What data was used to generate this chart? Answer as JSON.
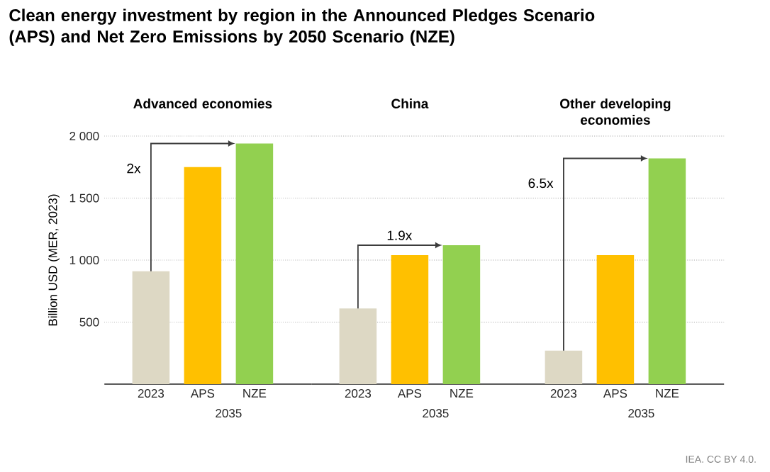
{
  "chart_data": [
    {
      "type": "bar",
      "title": "Clean energy investment by region in the Announced Pledges Scenario (APS) and Net Zero Emissions by 2050 Scenario (NZE)",
      "subtitle": "Advanced economies",
      "ylabel": "Billion USD (MER, 2023)",
      "xlabel": "2035",
      "categories": [
        "2023",
        "APS",
        "NZE"
      ],
      "values": [
        910,
        1750,
        1940
      ],
      "colors": [
        "#ddd8c4",
        "#ffc000",
        "#92d050"
      ],
      "ylim": [
        0,
        2000
      ],
      "yticks": [
        500,
        {
          "value": 1000,
          "label": "1 000"
        },
        {
          "value": 1500,
          "label": "1 500"
        },
        {
          "value": 2000,
          "label": "2 000"
        }
      ],
      "grid": "y",
      "annotations": [
        "2x"
      ]
    },
    {
      "type": "bar",
      "subtitle": "China",
      "xlabel": "2035",
      "categories": [
        "2023",
        "APS",
        "NZE"
      ],
      "values": [
        610,
        1040,
        1120
      ],
      "colors": [
        "#ddd8c4",
        "#ffc000",
        "#92d050"
      ],
      "ylim": [
        0,
        2000
      ],
      "yticks": [
        {
          "value": 500,
          "label": null
        },
        {
          "value": 1000,
          "label": null
        },
        {
          "value": 1500,
          "label": null
        },
        {
          "value": 2000,
          "label": null
        }
      ],
      "grid": "y",
      "tick_labels": "x",
      "annotations": [
        "1.9x"
      ]
    },
    {
      "type": "bar",
      "subtitle": "Other developing economies",
      "xlabel": "2035",
      "categories": [
        "2023",
        "APS",
        "NZE"
      ],
      "values": [
        270,
        1040,
        1820
      ],
      "colors": [
        "#ddd8c4",
        "#ffc000",
        "#92d050"
      ],
      "ylim": [
        0,
        2000
      ],
      "yticks": [
        {
          "value": 500,
          "label": null
        },
        {
          "value": 1000,
          "label": null
        },
        {
          "value": 1500,
          "label": null
        },
        {
          "value": 2000,
          "label": null
        }
      ],
      "grid": "y",
      "tick_labels": "x",
      "annotations": [
        "6.5x",
        "IEA. CC BY 4.0."
      ]
    }
  ]
}
